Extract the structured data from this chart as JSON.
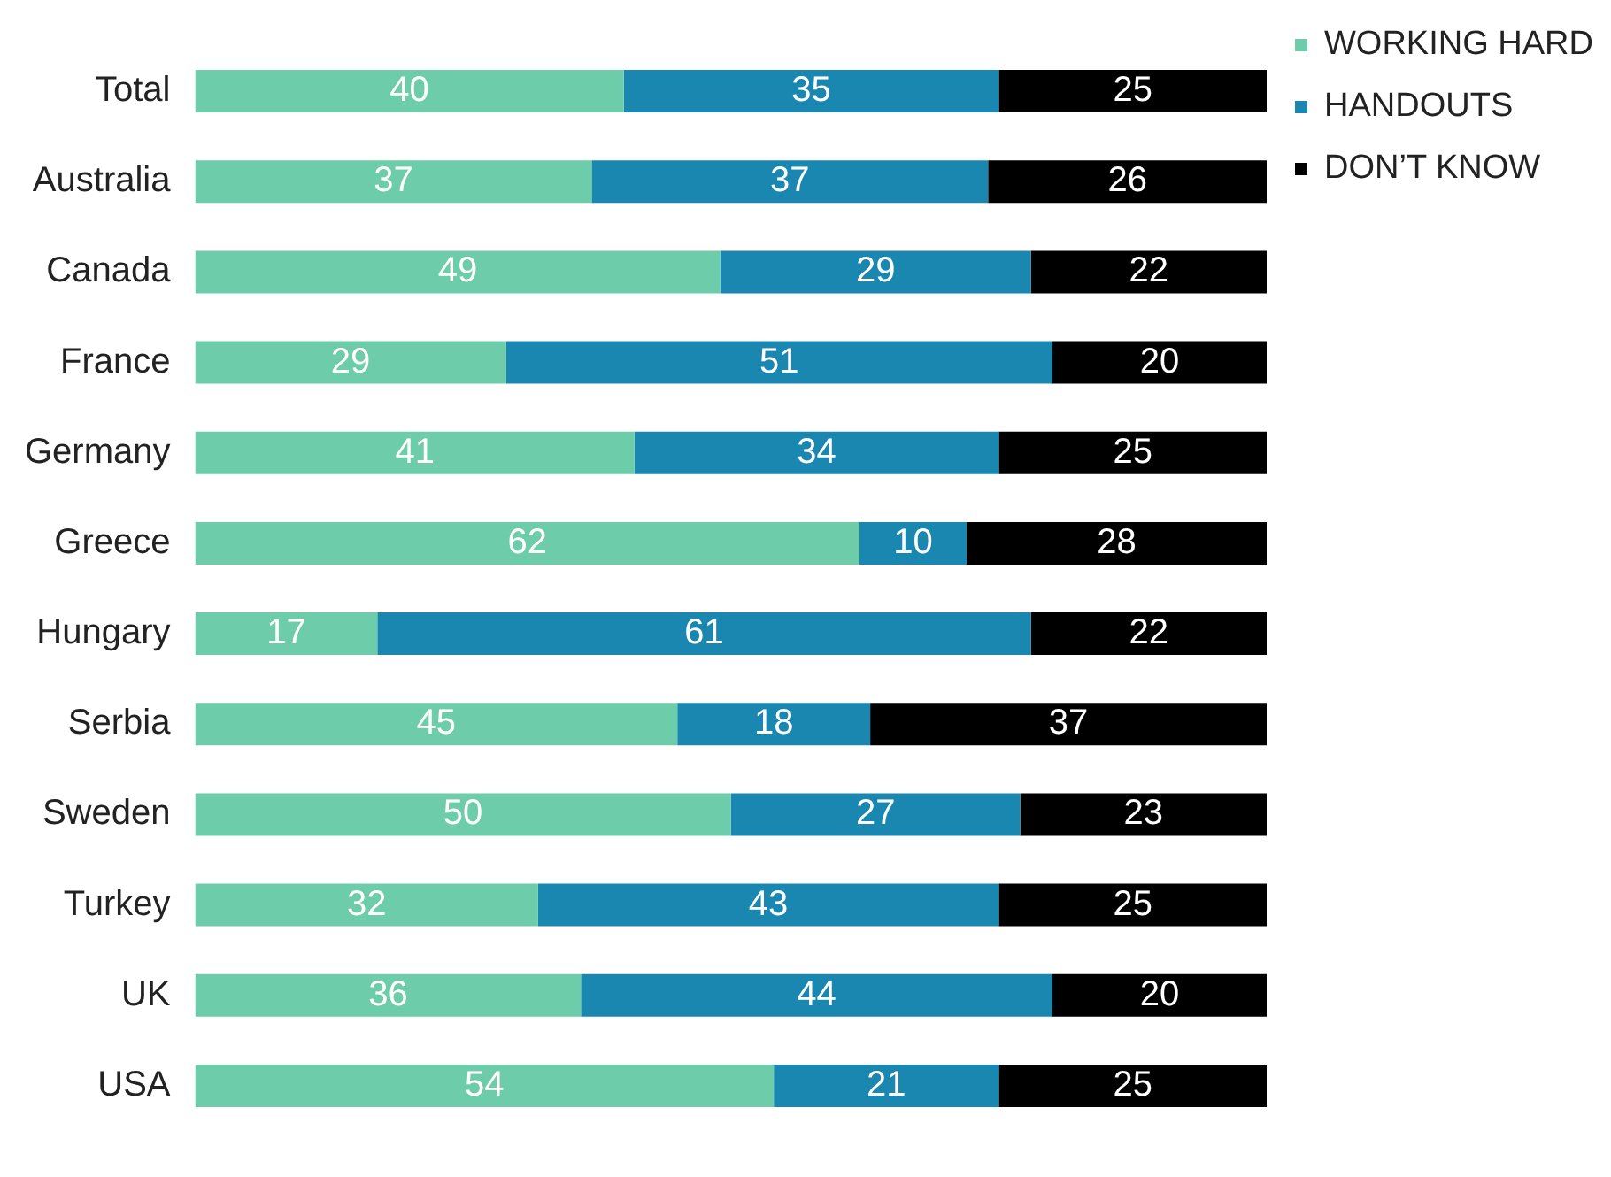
{
  "chart_data": {
    "type": "bar",
    "orientation": "horizontal",
    "stacked": true,
    "data_labels": true,
    "tick_labels": "y",
    "grid": false,
    "legend": "top right",
    "categories": [
      "Total",
      "Australia",
      "Canada",
      "France",
      "Germany",
      "Greece",
      "Hungary",
      "Serbia",
      "Sweden",
      "Turkey",
      "UK",
      "USA"
    ],
    "series": [
      {
        "name": "WORKING HARD",
        "color": "#6dcca9",
        "values": [
          40,
          37,
          49,
          29,
          41,
          62,
          17,
          45,
          50,
          32,
          36,
          54
        ]
      },
      {
        "name": "HANDOUTS",
        "color": "#1a87b0",
        "values": [
          35,
          37,
          29,
          51,
          34,
          10,
          61,
          18,
          27,
          43,
          44,
          21
        ]
      },
      {
        "name": "DON’T KNOW",
        "color": "#000000",
        "values": [
          25,
          26,
          22,
          20,
          25,
          28,
          22,
          37,
          23,
          25,
          20,
          25
        ]
      }
    ]
  }
}
